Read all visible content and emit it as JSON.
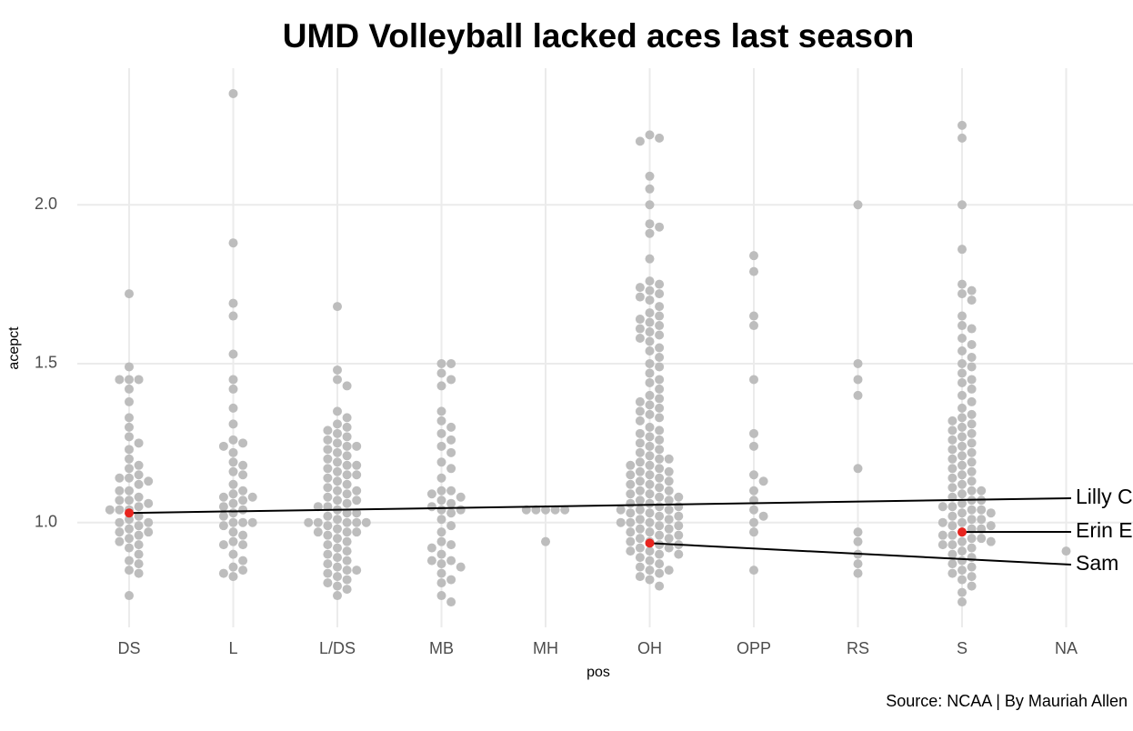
{
  "chart_data": {
    "type": "beeswarm",
    "title": "UMD Volleyball lacked aces last season",
    "x_label": "pos",
    "y_label": "acepct",
    "caption": "Source: NCAA | By Mauriah Allen",
    "categories": [
      "DS",
      "L",
      "L/DS",
      "MB",
      "MH",
      "OH",
      "OPP",
      "RS",
      "S",
      "NA"
    ],
    "color": "#bdbdbd",
    "grid": true,
    "ylim": [
      0.67,
      2.43
    ],
    "yticks": [
      {
        "value": 1,
        "label": "1.0"
      },
      {
        "value": 1.5,
        "label": "1.5"
      },
      {
        "value": 2,
        "label": "2.0"
      }
    ],
    "values": [
      [
        1.72,
        1.49,
        1.45,
        1.45,
        1.45,
        1.42,
        1.38,
        1.33,
        1.3,
        1.27,
        1.25,
        1.23,
        1.2,
        1.18,
        1.17,
        1.15,
        1.14,
        1.14,
        1.13,
        1.12,
        1.1,
        1.1,
        1.08,
        1.07,
        1.07,
        1.06,
        1.05,
        1.04,
        1.04,
        1.04,
        1.02,
        1.01,
        1.0,
        1.0,
        0.99,
        0.98,
        0.97,
        0.97,
        0.96,
        0.95,
        0.94,
        0.93,
        0.92,
        0.9,
        0.88,
        0.87,
        0.85,
        0.84,
        0.77
      ],
      [
        2.35,
        1.88,
        1.69,
        1.65,
        1.53,
        1.45,
        1.42,
        1.36,
        1.31,
        1.26,
        1.25,
        1.24,
        1.22,
        1.19,
        1.18,
        1.16,
        1.15,
        1.12,
        1.1,
        1.09,
        1.08,
        1.08,
        1.07,
        1.06,
        1.05,
        1.04,
        1.03,
        1.02,
        1.0,
        1.0,
        1.0,
        0.99,
        0.97,
        0.96,
        0.94,
        0.93,
        0.93,
        0.9,
        0.88,
        0.86,
        0.85,
        0.84,
        0.83
      ],
      [
        1.68,
        1.48,
        1.45,
        1.43,
        1.35,
        1.33,
        1.31,
        1.3,
        1.29,
        1.28,
        1.27,
        1.26,
        1.25,
        1.24,
        1.24,
        1.23,
        1.22,
        1.21,
        1.2,
        1.19,
        1.18,
        1.18,
        1.17,
        1.16,
        1.15,
        1.15,
        1.14,
        1.13,
        1.12,
        1.11,
        1.1,
        1.1,
        1.09,
        1.08,
        1.07,
        1.07,
        1.06,
        1.05,
        1.05,
        1.04,
        1.03,
        1.03,
        1.02,
        1.01,
        1.0,
        1.0,
        1.0,
        1.0,
        1.0,
        0.99,
        0.98,
        0.97,
        0.97,
        0.97,
        0.96,
        0.95,
        0.94,
        0.93,
        0.92,
        0.91,
        0.9,
        0.89,
        0.88,
        0.87,
        0.86,
        0.85,
        0.85,
        0.84,
        0.83,
        0.82,
        0.81,
        0.8,
        0.79,
        0.77
      ],
      [
        1.5,
        1.5,
        1.47,
        1.45,
        1.43,
        1.35,
        1.32,
        1.3,
        1.28,
        1.26,
        1.24,
        1.22,
        1.19,
        1.17,
        1.14,
        1.1,
        1.1,
        1.09,
        1.08,
        1.07,
        1.06,
        1.05,
        1.04,
        1.04,
        1.03,
        1.01,
        0.99,
        0.97,
        0.94,
        0.93,
        0.92,
        0.9,
        0.88,
        0.88,
        0.87,
        0.86,
        0.84,
        0.82,
        0.81,
        0.77,
        0.75
      ],
      [
        1.04,
        1.04,
        1.04,
        1.04,
        1.04,
        0.94
      ],
      [
        2.22,
        2.21,
        2.2,
        2.09,
        2.05,
        2.0,
        1.94,
        1.93,
        1.91,
        1.83,
        1.76,
        1.75,
        1.74,
        1.73,
        1.72,
        1.71,
        1.7,
        1.68,
        1.66,
        1.65,
        1.64,
        1.63,
        1.62,
        1.61,
        1.6,
        1.59,
        1.58,
        1.57,
        1.55,
        1.54,
        1.52,
        1.5,
        1.49,
        1.47,
        1.45,
        1.44,
        1.42,
        1.4,
        1.39,
        1.38,
        1.37,
        1.36,
        1.35,
        1.34,
        1.33,
        1.32,
        1.3,
        1.29,
        1.28,
        1.27,
        1.26,
        1.25,
        1.24,
        1.23,
        1.22,
        1.21,
        1.2,
        1.2,
        1.19,
        1.18,
        1.18,
        1.17,
        1.16,
        1.16,
        1.15,
        1.15,
        1.14,
        1.13,
        1.13,
        1.12,
        1.12,
        1.11,
        1.1,
        1.1,
        1.09,
        1.09,
        1.08,
        1.08,
        1.07,
        1.07,
        1.06,
        1.06,
        1.05,
        1.05,
        1.04,
        1.04,
        1.04,
        1.03,
        1.03,
        1.02,
        1.02,
        1.01,
        1.01,
        1.0,
        1.0,
        1.0,
        0.99,
        0.99,
        0.98,
        0.98,
        0.97,
        0.97,
        0.96,
        0.96,
        0.95,
        0.95,
        0.94,
        0.94,
        0.93,
        0.93,
        0.92,
        0.92,
        0.91,
        0.91,
        0.9,
        0.9,
        0.89,
        0.88,
        0.87,
        0.86,
        0.85,
        0.85,
        0.84,
        0.83,
        0.82,
        0.8
      ],
      [
        1.84,
        1.79,
        1.65,
        1.62,
        1.45,
        1.28,
        1.24,
        1.15,
        1.13,
        1.1,
        1.07,
        1.04,
        1.02,
        1.0,
        0.97,
        0.85
      ],
      [
        2.0,
        1.5,
        1.45,
        1.4,
        1.17,
        0.97,
        0.94,
        0.9,
        0.87,
        0.84
      ],
      [
        2.25,
        2.21,
        2.0,
        1.86,
        1.75,
        1.73,
        1.72,
        1.7,
        1.65,
        1.62,
        1.61,
        1.58,
        1.56,
        1.54,
        1.52,
        1.5,
        1.49,
        1.47,
        1.45,
        1.44,
        1.42,
        1.4,
        1.38,
        1.36,
        1.34,
        1.33,
        1.32,
        1.31,
        1.3,
        1.29,
        1.28,
        1.27,
        1.26,
        1.25,
        1.24,
        1.23,
        1.22,
        1.21,
        1.2,
        1.19,
        1.18,
        1.17,
        1.16,
        1.15,
        1.14,
        1.13,
        1.12,
        1.11,
        1.1,
        1.1,
        1.09,
        1.08,
        1.07,
        1.07,
        1.06,
        1.05,
        1.05,
        1.04,
        1.04,
        1.03,
        1.03,
        1.02,
        1.01,
        1.01,
        1.0,
        1.0,
        0.99,
        0.99,
        0.98,
        0.98,
        0.97,
        0.96,
        0.96,
        0.95,
        0.95,
        0.94,
        0.94,
        0.93,
        0.93,
        0.92,
        0.91,
        0.9,
        0.89,
        0.88,
        0.87,
        0.86,
        0.85,
        0.84,
        0.83,
        0.82,
        0.8,
        0.78,
        0.75
      ],
      [
        0.91
      ]
    ],
    "highlights": {
      "labels": [
        "Lilly C",
        "Erin E",
        "Sam"
      ],
      "categories": [
        "DS",
        "S",
        "OH"
      ],
      "values": [
        1.03,
        0.97,
        0.935
      ],
      "color": "#e8251f"
    }
  }
}
